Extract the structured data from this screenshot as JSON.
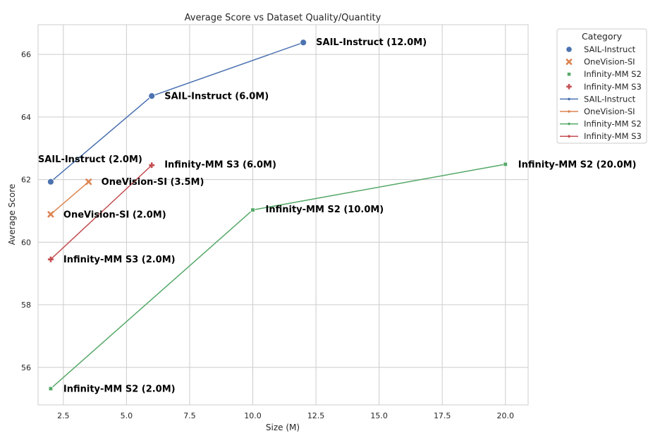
{
  "chart_data": {
    "type": "scatter",
    "title": "Average Score vs Dataset Quality/Quantity",
    "xlabel": "Size (M)",
    "ylabel": "Average Score",
    "xlim": [
      1.5,
      20.9
    ],
    "ylim": [
      54.8,
      66.95
    ],
    "x_ticks": [
      2.5,
      5.0,
      7.5,
      10.0,
      12.5,
      15.0,
      17.5,
      20.0
    ],
    "x_tick_labels": [
      "2.5",
      "5.0",
      "7.5",
      "10.0",
      "12.5",
      "15.0",
      "17.5",
      "20.0"
    ],
    "y_ticks": [
      56,
      58,
      60,
      62,
      64,
      66
    ],
    "y_tick_labels": [
      "56",
      "58",
      "60",
      "62",
      "64",
      "66"
    ],
    "grid": true,
    "legend": {
      "title": "Category",
      "placement": "outside top-right",
      "marker_entries": [
        "SAIL-Instruct",
        "OneVision-SI",
        "Infinity-MM S2",
        "Infinity-MM S3"
      ],
      "line_entries": [
        "SAIL-Instruct",
        "OneVision-SI",
        "Infinity-MM S2",
        "Infinity-MM S3"
      ]
    },
    "series": [
      {
        "name": "SAIL-Instruct",
        "color": "#4c72b0",
        "marker": "circle",
        "x": [
          2.0,
          6.0,
          12.0
        ],
        "y": [
          61.93,
          64.67,
          66.38
        ],
        "labels": [
          "SAIL-Instruct (2.0M)",
          "SAIL-Instruct (6.0M)",
          "SAIL-Instruct (12.0M)"
        ]
      },
      {
        "name": "OneVision-SI",
        "color": "#dd8452",
        "marker": "x",
        "x": [
          2.0,
          3.5
        ],
        "y": [
          60.89,
          61.93
        ],
        "labels": [
          "OneVision-SI (2.0M)",
          "OneVision-SI (3.5M)"
        ]
      },
      {
        "name": "Infinity-MM S2",
        "color": "#55a868",
        "marker": "square",
        "x": [
          2.0,
          10.0,
          20.0
        ],
        "y": [
          55.32,
          61.03,
          62.49
        ],
        "labels": [
          "Infinity-MM S2 (2.0M)",
          "Infinity-MM S2 (10.0M)",
          "Infinity-MM S2 (20.0M)"
        ]
      },
      {
        "name": "Infinity-MM S3",
        "color": "#c44e52",
        "marker": "plus",
        "x": [
          2.0,
          6.0
        ],
        "y": [
          59.45,
          62.46
        ],
        "labels": [
          "Infinity-MM S3 (2.0M)",
          "Infinity-MM S3 (6.0M)"
        ]
      }
    ]
  }
}
